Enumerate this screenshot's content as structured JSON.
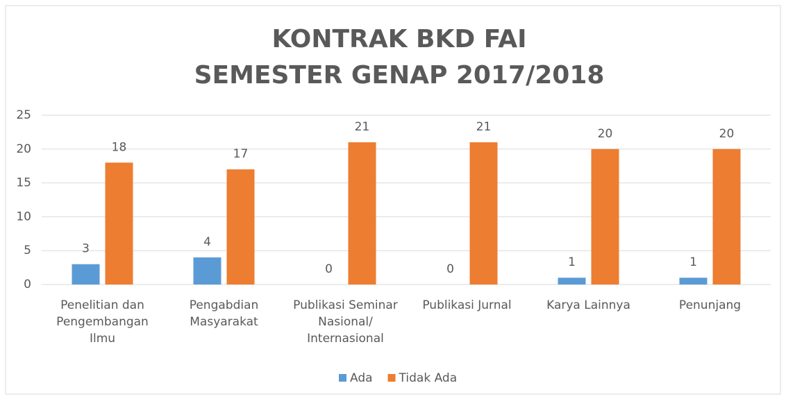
{
  "chart_data": {
    "type": "bar",
    "title": [
      "KONTRAK BKD FAI",
      "SEMESTER GENAP 2017/2018"
    ],
    "categories": [
      "Penelitian dan Pengembangan Ilmu",
      "Pengabdian Masyarakat",
      "Publikasi Seminar Nasional/ Internasional",
      "Publikasi Jurnal",
      "Karya Lainnya",
      "Penunjang"
    ],
    "series": [
      {
        "name": "Ada",
        "color": "#5b9bd5",
        "values": [
          3,
          4,
          0,
          0,
          1,
          1
        ]
      },
      {
        "name": "Tidak Ada",
        "color": "#ed7d31",
        "values": [
          18,
          17,
          21,
          21,
          20,
          20
        ]
      }
    ],
    "ylim": [
      0,
      25
    ],
    "yticks": [
      0,
      5,
      10,
      15,
      20,
      25
    ],
    "grid": true,
    "legend": "bottom"
  }
}
